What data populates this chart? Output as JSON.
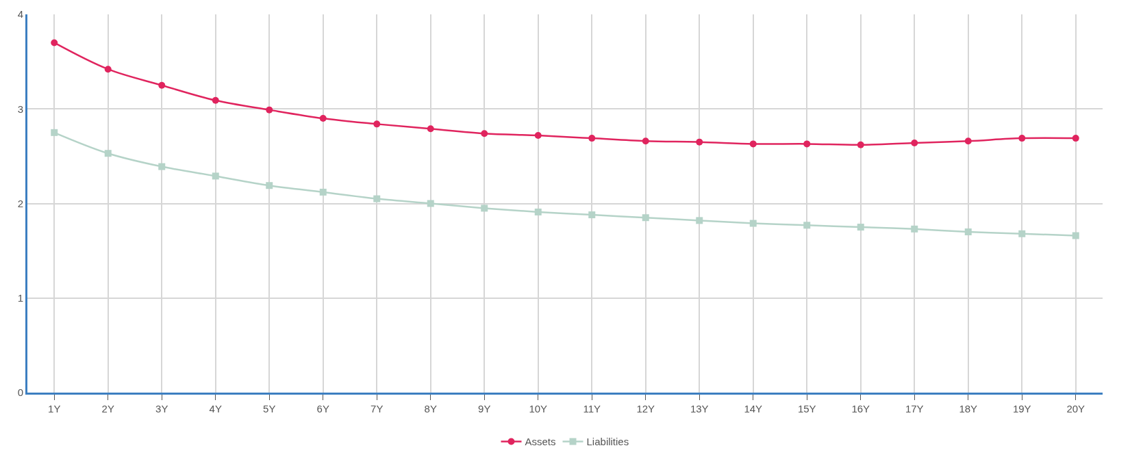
{
  "chart_data": {
    "type": "line",
    "categories": [
      "1Y",
      "2Y",
      "3Y",
      "4Y",
      "5Y",
      "6Y",
      "7Y",
      "8Y",
      "9Y",
      "10Y",
      "11Y",
      "12Y",
      "13Y",
      "14Y",
      "15Y",
      "16Y",
      "17Y",
      "18Y",
      "19Y",
      "20Y"
    ],
    "series": [
      {
        "name": "Assets",
        "color": "#e0245e",
        "marker": "circle",
        "values": [
          3.7,
          3.42,
          3.25,
          3.09,
          2.99,
          2.9,
          2.84,
          2.79,
          2.74,
          2.72,
          2.69,
          2.66,
          2.65,
          2.63,
          2.63,
          2.62,
          2.64,
          2.66,
          2.69,
          2.69
        ]
      },
      {
        "name": "Liabilities",
        "color": "#b5d3c8",
        "marker": "square",
        "values": [
          2.75,
          2.53,
          2.39,
          2.29,
          2.19,
          2.12,
          2.05,
          2.0,
          1.95,
          1.91,
          1.88,
          1.85,
          1.82,
          1.79,
          1.77,
          1.75,
          1.73,
          1.7,
          1.68,
          1.66
        ]
      }
    ],
    "ylim": [
      0,
      4
    ],
    "yticks": [
      0,
      1,
      2,
      3,
      4
    ],
    "grid": true,
    "legend": "bottom",
    "line_style": "solid"
  }
}
